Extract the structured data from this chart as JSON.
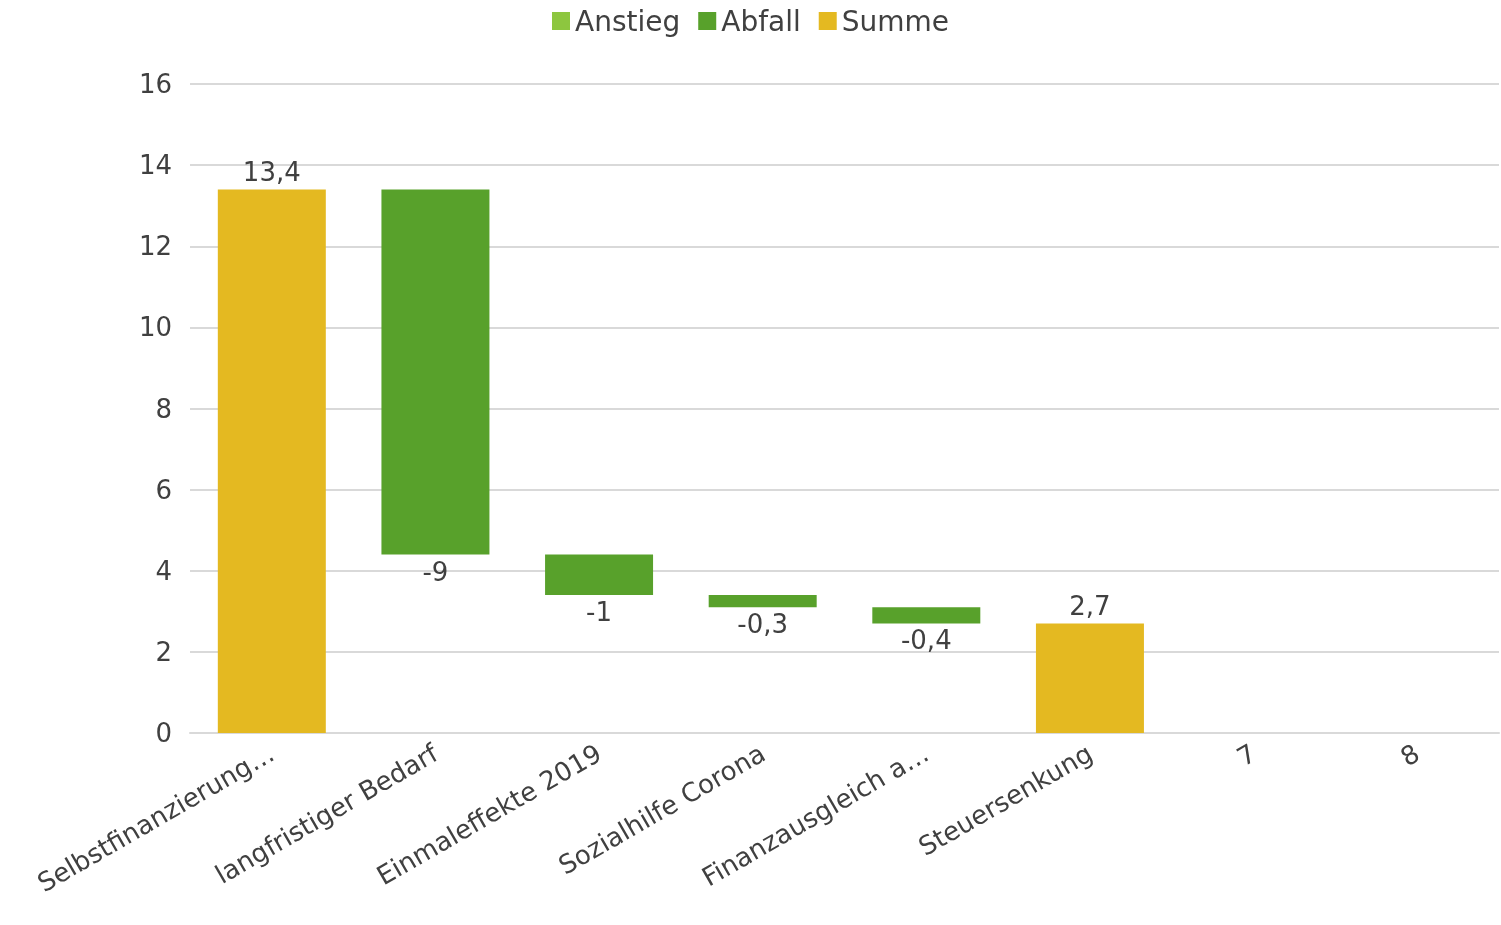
{
  "chart_data": {
    "type": "bar",
    "categories": [
      "Selbstfinanzierung…",
      "langfristiger Bedarf",
      "Einmaleffekte 2019",
      "Sozialhilfe Corona",
      "Finanzausgleich a…",
      "Steuersenkung",
      "7",
      "8"
    ],
    "series": [
      {
        "name": "Anstieg",
        "color": "#8dc63f",
        "values": [
          null,
          null,
          null,
          null,
          null,
          null,
          null,
          null
        ],
        "base": [
          null,
          null,
          null,
          null,
          null,
          null,
          null,
          null
        ],
        "value_labels": [
          null,
          null,
          null,
          null,
          null,
          null,
          null,
          null
        ]
      },
      {
        "name": "Abfall",
        "color": "#58a12b",
        "values": [
          null,
          -9,
          -1,
          -0.3,
          -0.4,
          null,
          null,
          null
        ],
        "base": [
          null,
          13.4,
          4.4,
          3.4,
          3.1,
          null,
          null,
          null
        ],
        "value_labels": [
          null,
          "-9",
          "-1",
          "-0,3",
          "-0,4",
          null,
          null,
          null
        ]
      },
      {
        "name": "Summe",
        "color": "#e4b921",
        "values": [
          13.4,
          null,
          null,
          null,
          null,
          2.7,
          null,
          null
        ],
        "base": [
          0,
          null,
          null,
          null,
          null,
          0,
          null,
          null
        ],
        "value_labels": [
          "13,4",
          null,
          null,
          null,
          null,
          "2,7",
          null,
          null
        ]
      }
    ],
    "ylim": [
      0,
      16
    ],
    "yticks": [
      0,
      2,
      4,
      6,
      8,
      10,
      12,
      14,
      16
    ],
    "grid": "y",
    "legend": "top"
  }
}
